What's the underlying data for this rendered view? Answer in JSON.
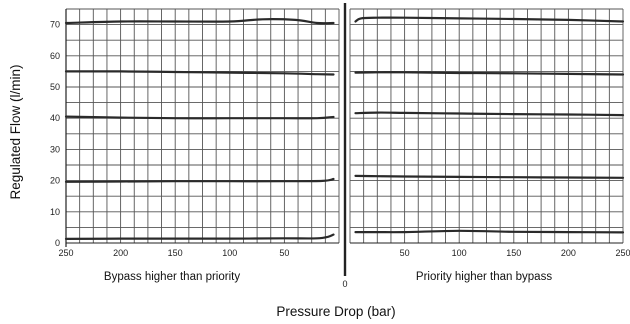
{
  "chart_data": {
    "type": "line",
    "xlabel": "Pressure Drop (bar)",
    "ylabel": "Regulated Flow (l/min)",
    "ylim": [
      0,
      75
    ],
    "yticks": [
      "0",
      "10",
      "20",
      "30",
      "40",
      "50",
      "60",
      "70"
    ],
    "grid": true,
    "center_label": "0",
    "panels": [
      {
        "annotation": "Bypass higher than priority",
        "xlim": [
          250,
          0
        ],
        "xticks": [
          "250",
          "200",
          "150",
          "100",
          "50"
        ],
        "series": [
          {
            "x": [
              250,
              200,
              150,
              100,
              70,
              40,
              20,
              5
            ],
            "y": [
              70.5,
              71,
              71,
              71,
              71.7,
              71.5,
              70.5,
              70.5
            ]
          },
          {
            "x": [
              250,
              200,
              150,
              100,
              50,
              20,
              5
            ],
            "y": [
              55,
              55,
              54.8,
              54.6,
              54.4,
              54.1,
              54
            ]
          },
          {
            "x": [
              250,
              200,
              150,
              100,
              50,
              20,
              5
            ],
            "y": [
              40.5,
              40.2,
              40,
              40,
              40,
              40,
              40.4
            ]
          },
          {
            "x": [
              250,
              200,
              150,
              100,
              50,
              15,
              5
            ],
            "y": [
              19.6,
              19.7,
              19.8,
              19.8,
              19.8,
              19.9,
              20.5
            ]
          },
          {
            "x": [
              250,
              200,
              150,
              100,
              50,
              20,
              10,
              5
            ],
            "y": [
              1.3,
              1.4,
              1.4,
              1.4,
              1.5,
              1.5,
              2,
              2.7
            ]
          }
        ]
      },
      {
        "annotation": "Priority higher than bypass",
        "xlim": [
          0,
          250
        ],
        "xticks": [
          "50",
          "100",
          "150",
          "200",
          "250"
        ],
        "series": [
          {
            "x": [
              5,
              10,
              25,
              50,
              100,
              150,
              200,
              250
            ],
            "y": [
              71,
              72,
              72.2,
              72.2,
              72,
              71.8,
              71.5,
              71
            ]
          },
          {
            "x": [
              5,
              25,
              50,
              100,
              150,
              200,
              250
            ],
            "y": [
              54.6,
              54.7,
              54.7,
              54.5,
              54.4,
              54.2,
              54
            ]
          },
          {
            "x": [
              5,
              25,
              50,
              100,
              150,
              200,
              250
            ],
            "y": [
              41.6,
              41.8,
              41.7,
              41.5,
              41.3,
              41.2,
              41
            ]
          },
          {
            "x": [
              5,
              25,
              50,
              100,
              150,
              200,
              250
            ],
            "y": [
              21.5,
              21.4,
              21.3,
              21.2,
              21.1,
              21,
              20.9
            ]
          },
          {
            "x": [
              5,
              25,
              50,
              100,
              150,
              200,
              250
            ],
            "y": [
              3.5,
              3.5,
              3.5,
              3.9,
              3.6,
              3.5,
              3.4
            ]
          }
        ]
      }
    ]
  }
}
